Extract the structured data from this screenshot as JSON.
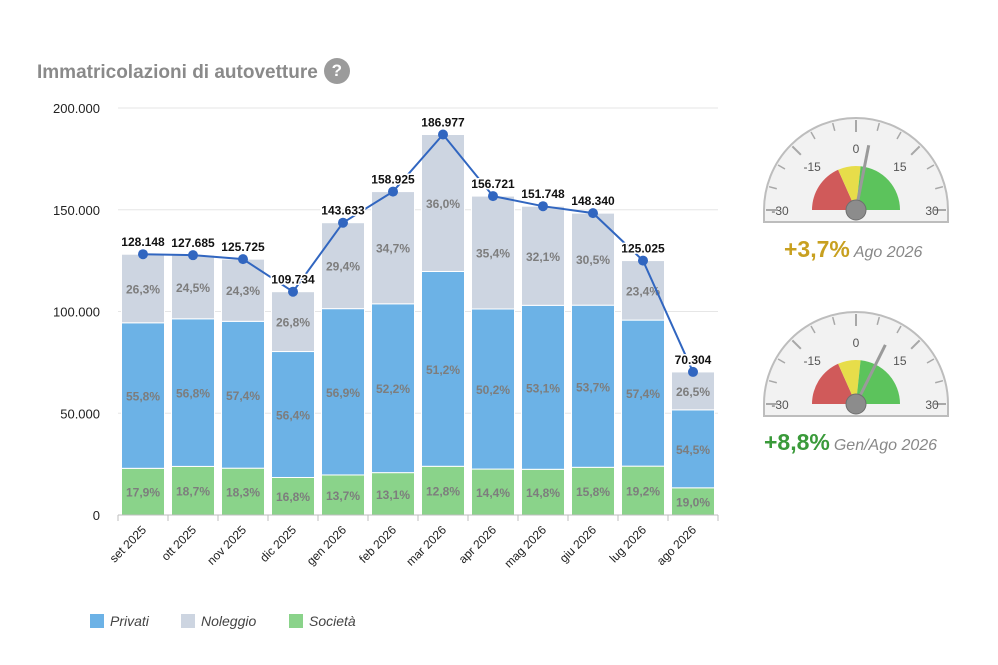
{
  "header": {
    "title": "Immatricolazioni di autovetture",
    "help_label": "?"
  },
  "chart_data": {
    "type": "bar",
    "stacked": true,
    "categories": [
      "set 2025",
      "ott 2025",
      "nov 2025",
      "dic 2025",
      "gen 2026",
      "feb 2026",
      "mar 2026",
      "apr 2026",
      "mag 2026",
      "giu 2026",
      "lug 2026",
      "ago 2026"
    ],
    "series": [
      {
        "name": "Società",
        "color": "#8ad38a",
        "percent_labels": [
          "17,9%",
          "18,7%",
          "18,3%",
          "16,8%",
          "13,7%",
          "13,1%",
          "12,8%",
          "14,4%",
          "14,8%",
          "15,8%",
          "19,2%",
          "19,0%"
        ]
      },
      {
        "name": "Privati",
        "color": "#6cb2e6",
        "percent_labels": [
          "55,8%",
          "56,8%",
          "57,4%",
          "56,4%",
          "56,9%",
          "52,2%",
          "51,2%",
          "50,2%",
          "53,1%",
          "53,7%",
          "57,4%",
          "54,5%"
        ]
      },
      {
        "name": "Noleggio",
        "color": "#cdd5e1",
        "percent_labels": [
          "26,3%",
          "24,5%",
          "24,3%",
          "26,8%",
          "29,4%",
          "34,7%",
          "36,0%",
          "35,4%",
          "32,1%",
          "30,5%",
          "23,4%",
          "26,5%"
        ]
      }
    ],
    "totals": [
      128148,
      127685,
      125725,
      109734,
      143633,
      158925,
      186977,
      156721,
      151748,
      148340,
      125025,
      70304
    ],
    "total_labels": [
      "128.148",
      "127.685",
      "125.725",
      "109.734",
      "143.633",
      "158.925",
      "186.977",
      "156.721",
      "151.748",
      "148.340",
      "125.025",
      "70.304"
    ],
    "line_color": "#3166c0",
    "y_ticks": [
      "200.000",
      "150.000",
      "100.000",
      "50.000",
      "0"
    ],
    "ylim": [
      0,
      200000
    ],
    "legend": [
      "Privati",
      "Noleggio",
      "Società"
    ]
  },
  "gauges": [
    {
      "value": 3.7,
      "value_label": "+3,7%",
      "period": "Ago 2026",
      "color": "#c8a020",
      "tick_labels": [
        "-30",
        "-15",
        "0",
        "15",
        "30"
      ],
      "range": [
        -30,
        30
      ]
    },
    {
      "value": 8.8,
      "value_label": "+8,8%",
      "period": "Gen/Ago 2026",
      "color": "#3a9a3a",
      "tick_labels": [
        "-30",
        "-15",
        "0",
        "15",
        "30"
      ],
      "range": [
        -30,
        30
      ]
    }
  ]
}
